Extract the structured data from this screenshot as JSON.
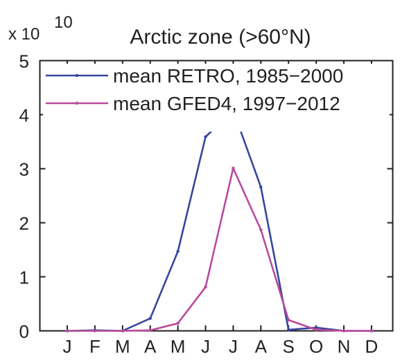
{
  "chart_data": {
    "type": "line",
    "title": "Arctic zone (>60°N)",
    "xlabel": "",
    "ylabel": "",
    "y_multiplier": {
      "base": "x 10",
      "exponent": "10"
    },
    "categories": [
      "J",
      "F",
      "M",
      "A",
      "M",
      "J",
      "J",
      "A",
      "S",
      "O",
      "N",
      "D"
    ],
    "y_ticks": [
      "0",
      "1",
      "2",
      "3",
      "4",
      "5"
    ],
    "ylim": [
      0,
      5
    ],
    "grid": false,
    "legend_position": "top-left",
    "series": [
      {
        "name": "mean RETRO, 1985−2000",
        "color": "#35469c",
        "values": [
          0,
          0.01,
          0,
          0.23,
          1.47,
          3.59,
          4.08,
          2.66,
          0.02,
          0.06,
          0,
          0
        ]
      },
      {
        "name": "mean GFED4, 1997−2012",
        "color": "#b94a9c",
        "values": [
          0,
          0,
          0,
          0.01,
          0.14,
          0.81,
          3.01,
          1.87,
          0.2,
          0.02,
          0,
          0
        ]
      }
    ]
  }
}
